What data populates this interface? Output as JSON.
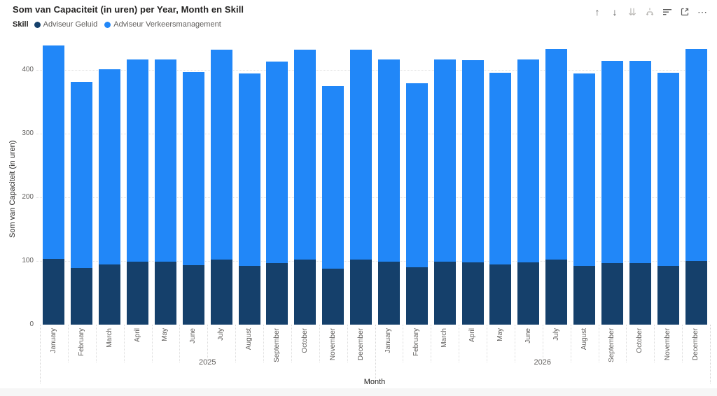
{
  "header": {
    "title": "Som van Capaciteit (in uren) per Year, Month en Skill",
    "icons": {
      "drill_up": {
        "name": "drill-up-icon",
        "glyph": "↑",
        "enabled": true
      },
      "drill_down": {
        "name": "drill-down-icon",
        "glyph": "↓",
        "enabled": true
      },
      "go_to_next_level": {
        "name": "go-to-next-level-icon",
        "glyph": "⇊",
        "enabled": false
      },
      "expand_all": {
        "name": "expand-all-icon",
        "enabled": false
      },
      "sort": {
        "name": "sort-icon",
        "enabled": true
      },
      "focus_mode": {
        "name": "focus-mode-icon",
        "enabled": true
      },
      "more_options": {
        "name": "more-options-icon",
        "glyph": "⋯",
        "enabled": true
      }
    }
  },
  "legend": {
    "label": "Skill",
    "items": [
      {
        "name": "Adviseur Geluid",
        "color": "#15406B"
      },
      {
        "name": "Adviseur Verkeersmanagement",
        "color": "#2187F8"
      }
    ]
  },
  "chart_data": {
    "type": "bar",
    "stacked": true,
    "title": "Som van Capaciteit (in uren) per Year, Month en Skill",
    "xlabel": "Month",
    "ylabel": "Som van Capaciteit (in uren)",
    "ylim": [
      0,
      450
    ],
    "yticks": [
      0,
      100,
      200,
      300,
      400
    ],
    "grid": "horizontal-dotted",
    "legend_position": "top-left",
    "series_colors": {
      "Adviseur Geluid": "#15406B",
      "Adviseur Verkeersmanagement": "#2187F8"
    },
    "groups": [
      {
        "year": "2025",
        "categories": [
          "January",
          "February",
          "March",
          "April",
          "May",
          "June",
          "July",
          "August",
          "September",
          "October",
          "November",
          "December"
        ],
        "series": [
          {
            "name": "Adviseur Geluid",
            "values": [
              103,
              89,
              95,
              99,
              99,
              93,
              102,
              92,
              97,
              102,
              88,
              102
            ]
          },
          {
            "name": "Adviseur Verkeersmanagement",
            "values": [
              336,
              292,
              306,
              317,
              317,
              304,
              330,
              302,
              316,
              330,
              287,
              330
            ]
          }
        ]
      },
      {
        "year": "2026",
        "categories": [
          "January",
          "February",
          "March",
          "April",
          "May",
          "June",
          "July",
          "August",
          "September",
          "October",
          "November",
          "December"
        ],
        "series": [
          {
            "name": "Adviseur Geluid",
            "values": [
              99,
              90,
              99,
              98,
              94,
              98,
              102,
              92,
              97,
              97,
              92,
              100
            ]
          },
          {
            "name": "Adviseur Verkeersmanagement",
            "values": [
              317,
              289,
              318,
              317,
              302,
              318,
              331,
              303,
              317,
              317,
              304,
              333
            ]
          }
        ]
      }
    ]
  }
}
